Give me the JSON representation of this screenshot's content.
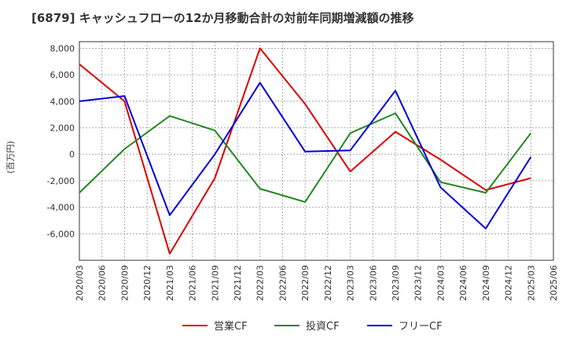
{
  "title": "[6879]  キャッシュフローの12か月移動合計の対前年同期増減額の推移",
  "chart_data": {
    "type": "line",
    "x": [
      "2020/03",
      "2020/06",
      "2020/09",
      "2020/12",
      "2021/03",
      "2021/06",
      "2021/09",
      "2021/12",
      "2022/03",
      "2022/06",
      "2022/09",
      "2022/12",
      "2023/03",
      "2023/06",
      "2023/09",
      "2023/12",
      "2024/03",
      "2024/06",
      "2024/09",
      "2024/12",
      "2025/03",
      "2025/06"
    ],
    "ylabel": "(百万円)",
    "ylim": [
      -8000,
      8500
    ],
    "yticks": [
      8000,
      6000,
      4000,
      2000,
      0,
      -2000,
      -4000,
      -6000
    ],
    "ytick_labels": [
      "8,000",
      "6,000",
      "4,000",
      "2,000",
      "0",
      "-2,000",
      "-4,000",
      "-6,000"
    ],
    "grid": true,
    "legend_position": "bottom",
    "series": [
      {
        "name": "営業CF",
        "color": "#dd0000",
        "points": [
          [
            "2020/03",
            6800
          ],
          [
            "2020/09",
            4000
          ],
          [
            "2021/03",
            -7500
          ],
          [
            "2021/09",
            -1800
          ],
          [
            "2022/03",
            8000
          ],
          [
            "2022/09",
            3800
          ],
          [
            "2023/03",
            -1300
          ],
          [
            "2023/09",
            1700
          ],
          [
            "2024/03",
            -400
          ],
          [
            "2024/09",
            -2700
          ],
          [
            "2025/03",
            -1800
          ]
        ]
      },
      {
        "name": "投資CF",
        "color": "#228822",
        "points": [
          [
            "2020/03",
            -2900
          ],
          [
            "2020/09",
            400
          ],
          [
            "2021/03",
            2900
          ],
          [
            "2021/09",
            1800
          ],
          [
            "2022/03",
            -2600
          ],
          [
            "2022/09",
            -3600
          ],
          [
            "2023/03",
            1600
          ],
          [
            "2023/09",
            3100
          ],
          [
            "2024/03",
            -2100
          ],
          [
            "2024/09",
            -2900
          ],
          [
            "2025/03",
            1600
          ]
        ]
      },
      {
        "name": "フリーCF",
        "color": "#0000dd",
        "points": [
          [
            "2020/03",
            4000
          ],
          [
            "2020/09",
            4400
          ],
          [
            "2021/03",
            -4600
          ],
          [
            "2021/09",
            0
          ],
          [
            "2022/03",
            5400
          ],
          [
            "2022/09",
            200
          ],
          [
            "2023/03",
            300
          ],
          [
            "2023/09",
            4800
          ],
          [
            "2024/03",
            -2500
          ],
          [
            "2024/09",
            -5600
          ],
          [
            "2025/03",
            -200
          ]
        ]
      }
    ]
  }
}
